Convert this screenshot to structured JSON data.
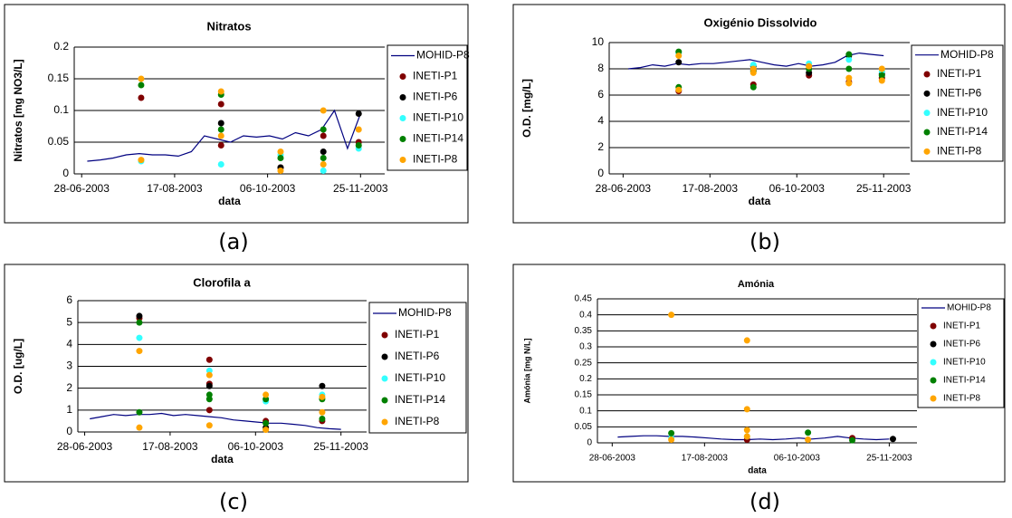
{
  "chart_data": [
    {
      "type": "mixed",
      "title": "Nitratos",
      "caption": "(a)",
      "x_label": "data",
      "y_label": "Nitratos [mg NO3/L]",
      "grid": true,
      "legend": "right",
      "xlim": [
        "2003-06-24",
        "2003-12-08"
      ],
      "xticks": [
        {
          "value": "2003-06-28",
          "label": "28-06-2003"
        },
        {
          "value": "2003-08-17",
          "label": "17-08-2003"
        },
        {
          "value": "2003-10-06",
          "label": "06-10-2003"
        },
        {
          "value": "2003-11-25",
          "label": "25-11-2003"
        }
      ],
      "ylim": [
        0,
        0.2
      ],
      "yticks": [
        0,
        0.05,
        0.1,
        0.15,
        0.2
      ],
      "series": [
        {
          "name": "MOHID-P8",
          "type": "line",
          "color": "#000080",
          "x": [
            "2003-07-01",
            "2003-07-08",
            "2003-07-15",
            "2003-07-22",
            "2003-07-29",
            "2003-08-05",
            "2003-08-12",
            "2003-08-19",
            "2003-08-26",
            "2003-09-02",
            "2003-09-09",
            "2003-09-16",
            "2003-09-23",
            "2003-09-30",
            "2003-10-07",
            "2003-10-14",
            "2003-10-21",
            "2003-10-28",
            "2003-11-04",
            "2003-11-11",
            "2003-11-18",
            "2003-11-25"
          ],
          "values": [
            0.02,
            0.022,
            0.025,
            0.03,
            0.032,
            0.03,
            0.03,
            0.028,
            0.035,
            0.06,
            0.055,
            0.05,
            0.06,
            0.058,
            0.06,
            0.055,
            0.065,
            0.06,
            0.07,
            0.1,
            0.04,
            0.095
          ]
        },
        {
          "name": "INETI-P1",
          "type": "scatter",
          "color": "#800000",
          "x": [
            "2003-07-30",
            "2003-09-11",
            "2003-09-11",
            "2003-10-13",
            "2003-11-05",
            "2003-11-24"
          ],
          "values": [
            0.12,
            0.11,
            0.045,
            0.01,
            0.06,
            0.05
          ]
        },
        {
          "name": "INETI-P6",
          "type": "scatter",
          "color": "#000000",
          "x": [
            "2003-09-11",
            "2003-10-13",
            "2003-11-05",
            "2003-11-24"
          ],
          "values": [
            0.08,
            0.01,
            0.035,
            0.095
          ]
        },
        {
          "name": "INETI-P10",
          "type": "scatter",
          "color": "#33ffff",
          "x": [
            "2003-07-30",
            "2003-09-11",
            "2003-10-13",
            "2003-11-05",
            "2003-11-24"
          ],
          "values": [
            0.02,
            0.015,
            0.03,
            0.005,
            0.04
          ]
        },
        {
          "name": "INETI-P14",
          "type": "scatter",
          "color": "#008000",
          "x": [
            "2003-07-30",
            "2003-09-11",
            "2003-09-11",
            "2003-10-13",
            "2003-11-05",
            "2003-11-05",
            "2003-11-24"
          ],
          "values": [
            0.14,
            0.125,
            0.07,
            0.025,
            0.07,
            0.025,
            0.045
          ]
        },
        {
          "name": "INETI-P8",
          "type": "scatter",
          "color": "#ffa500",
          "x": [
            "2003-07-30",
            "2003-07-30",
            "2003-09-11",
            "2003-09-11",
            "2003-10-13",
            "2003-10-13",
            "2003-11-05",
            "2003-11-05",
            "2003-11-24"
          ],
          "values": [
            0.15,
            0.022,
            0.13,
            0.06,
            0.035,
            0.005,
            0.1,
            0.015,
            0.07
          ]
        }
      ]
    },
    {
      "type": "mixed",
      "title": "Oxigénio Dissolvido",
      "caption": "(b)",
      "x_label": "data",
      "y_label": "O.D. [mg/L]",
      "grid": true,
      "legend": "right",
      "xlim": [
        "2003-06-20",
        "2003-12-10"
      ],
      "xticks": [
        {
          "value": "2003-06-28",
          "label": "28-06-2003"
        },
        {
          "value": "2003-08-17",
          "label": "17-08-2003"
        },
        {
          "value": "2003-10-06",
          "label": "06-10-2003"
        },
        {
          "value": "2003-11-25",
          "label": "25-11-2003"
        }
      ],
      "ylim": [
        0,
        10
      ],
      "yticks": [
        0,
        2,
        4,
        6,
        8,
        10
      ],
      "series": [
        {
          "name": "MOHID-P8",
          "type": "line",
          "color": "#000080",
          "x": [
            "2003-07-01",
            "2003-07-08",
            "2003-07-15",
            "2003-07-22",
            "2003-07-29",
            "2003-08-05",
            "2003-08-12",
            "2003-08-19",
            "2003-08-26",
            "2003-09-02",
            "2003-09-09",
            "2003-09-16",
            "2003-09-23",
            "2003-09-30",
            "2003-10-07",
            "2003-10-14",
            "2003-10-21",
            "2003-10-28",
            "2003-11-04",
            "2003-11-11",
            "2003-11-18",
            "2003-11-25"
          ],
          "values": [
            8,
            8.1,
            8.3,
            8.2,
            8.4,
            8.3,
            8.4,
            8.4,
            8.5,
            8.6,
            8.7,
            8.5,
            8.3,
            8.2,
            8.4,
            8.2,
            8.3,
            8.5,
            9,
            9.2,
            9.1,
            9
          ]
        },
        {
          "name": "INETI-P1",
          "type": "scatter",
          "color": "#800000",
          "x": [
            "2003-07-30",
            "2003-09-11",
            "2003-09-11",
            "2003-10-13",
            "2003-11-05",
            "2003-11-24"
          ],
          "values": [
            6.3,
            6.8,
            7.9,
            7.5,
            7,
            7.3
          ]
        },
        {
          "name": "INETI-P6",
          "type": "scatter",
          "color": "#000000",
          "x": [
            "2003-07-30",
            "2003-09-11",
            "2003-10-13",
            "2003-11-05",
            "2003-11-24"
          ],
          "values": [
            8.5,
            8.2,
            7.7,
            9,
            7.6
          ]
        },
        {
          "name": "INETI-P10",
          "type": "scatter",
          "color": "#33ffff",
          "x": [
            "2003-07-30",
            "2003-09-11",
            "2003-10-13",
            "2003-11-05",
            "2003-11-24"
          ],
          "values": [
            9.2,
            8.3,
            8.4,
            8.7,
            7.8
          ]
        },
        {
          "name": "INETI-P14",
          "type": "scatter",
          "color": "#008000",
          "x": [
            "2003-07-30",
            "2003-07-30",
            "2003-09-11",
            "2003-09-11",
            "2003-10-13",
            "2003-11-05",
            "2003-11-05",
            "2003-11-24"
          ],
          "values": [
            9.3,
            6.6,
            6.6,
            7.8,
            8,
            9.1,
            8,
            7.5
          ]
        },
        {
          "name": "INETI-P8",
          "type": "scatter",
          "color": "#ffa500",
          "x": [
            "2003-07-30",
            "2003-07-30",
            "2003-09-11",
            "2003-09-11",
            "2003-10-13",
            "2003-11-05",
            "2003-11-05",
            "2003-11-24",
            "2003-11-24"
          ],
          "values": [
            9,
            6.4,
            8,
            7.7,
            8.2,
            6.9,
            7.3,
            7.1,
            8
          ]
        }
      ]
    },
    {
      "type": "mixed",
      "title": "Clorofila a",
      "caption": "(c)",
      "x_label": "data",
      "y_label": "O.D. [ug/L]",
      "grid": true,
      "legend": "right",
      "xlim": [
        "2003-06-24",
        "2003-12-10"
      ],
      "xticks": [
        {
          "value": "2003-06-28",
          "label": "28-06-2003"
        },
        {
          "value": "2003-08-17",
          "label": "17-08-2003"
        },
        {
          "value": "2003-10-06",
          "label": "06-10-2003"
        },
        {
          "value": "2003-11-25",
          "label": "25-11-2003"
        }
      ],
      "ylim": [
        0,
        6
      ],
      "yticks": [
        0,
        1,
        2,
        3,
        4,
        5,
        6
      ],
      "series": [
        {
          "name": "MOHID-P8",
          "type": "line",
          "color": "#000080",
          "x": [
            "2003-07-01",
            "2003-07-08",
            "2003-07-15",
            "2003-07-22",
            "2003-07-29",
            "2003-08-05",
            "2003-08-12",
            "2003-08-19",
            "2003-08-26",
            "2003-09-02",
            "2003-09-09",
            "2003-09-16",
            "2003-09-23",
            "2003-09-30",
            "2003-10-07",
            "2003-10-14",
            "2003-10-21",
            "2003-10-28",
            "2003-11-04",
            "2003-11-11",
            "2003-11-18",
            "2003-11-25"
          ],
          "values": [
            0.6,
            0.7,
            0.8,
            0.75,
            0.8,
            0.8,
            0.85,
            0.75,
            0.8,
            0.75,
            0.7,
            0.65,
            0.55,
            0.5,
            0.45,
            0.4,
            0.4,
            0.35,
            0.3,
            0.2,
            0.15,
            0.12
          ]
        },
        {
          "name": "INETI-P1",
          "type": "scatter",
          "color": "#800000",
          "x": [
            "2003-07-30",
            "2003-09-09",
            "2003-09-09",
            "2003-09-09",
            "2003-10-12",
            "2003-11-14"
          ],
          "values": [
            5.2,
            3.3,
            2.2,
            1,
            0.5,
            0.5
          ]
        },
        {
          "name": "INETI-P6",
          "type": "scatter",
          "color": "#000000",
          "x": [
            "2003-07-30",
            "2003-09-09",
            "2003-10-12",
            "2003-11-14"
          ],
          "values": [
            5.3,
            2.1,
            0.2,
            2.1
          ]
        },
        {
          "name": "INETI-P10",
          "type": "scatter",
          "color": "#33ffff",
          "x": [
            "2003-07-30",
            "2003-09-09",
            "2003-10-12",
            "2003-11-14"
          ],
          "values": [
            4.3,
            2.8,
            1.4,
            1.7
          ]
        },
        {
          "name": "INETI-P14",
          "type": "scatter",
          "color": "#008000",
          "x": [
            "2003-07-30",
            "2003-07-30",
            "2003-09-09",
            "2003-09-09",
            "2003-10-12",
            "2003-10-12",
            "2003-11-14",
            "2003-11-14"
          ],
          "values": [
            5,
            0.9,
            1.7,
            1.5,
            1.5,
            0.4,
            1.5,
            0.6
          ]
        },
        {
          "name": "INETI-P8",
          "type": "scatter",
          "color": "#ffa500",
          "x": [
            "2003-07-30",
            "2003-07-30",
            "2003-09-09",
            "2003-09-09",
            "2003-10-12",
            "2003-10-12",
            "2003-11-14",
            "2003-11-14"
          ],
          "values": [
            3.7,
            0.2,
            2.6,
            0.3,
            1.7,
            0.1,
            1.6,
            0.9
          ]
        }
      ]
    },
    {
      "type": "mixed",
      "title": "Amónia",
      "caption": "(d)",
      "x_label": "data",
      "y_label": "Amónia [mg N/L]",
      "grid": true,
      "legend": "right",
      "xlim": [
        "2003-06-20",
        "2003-12-10"
      ],
      "xticks": [
        {
          "value": "2003-06-28",
          "label": "28-06-2003"
        },
        {
          "value": "2003-08-17",
          "label": "17-08-2003"
        },
        {
          "value": "2003-10-06",
          "label": "06-10-2003"
        },
        {
          "value": "2003-11-25",
          "label": "25-11-2003"
        }
      ],
      "ylim": [
        0,
        0.45
      ],
      "yticks": [
        0,
        0.05,
        0.1,
        0.15,
        0.2,
        0.25,
        0.3,
        0.35,
        0.4,
        0.45
      ],
      "series": [
        {
          "name": "MOHID-P8",
          "type": "line",
          "color": "#000080",
          "x": [
            "2003-07-01",
            "2003-07-08",
            "2003-07-15",
            "2003-07-22",
            "2003-07-29",
            "2003-08-05",
            "2003-08-12",
            "2003-08-19",
            "2003-08-26",
            "2003-09-02",
            "2003-09-09",
            "2003-09-16",
            "2003-09-23",
            "2003-09-30",
            "2003-10-07",
            "2003-10-14",
            "2003-10-21",
            "2003-10-28",
            "2003-11-04",
            "2003-11-11",
            "2003-11-18",
            "2003-11-25"
          ],
          "values": [
            0.018,
            0.02,
            0.022,
            0.022,
            0.02,
            0.02,
            0.018,
            0.015,
            0.012,
            0.01,
            0.01,
            0.012,
            0.01,
            0.012,
            0.015,
            0.012,
            0.015,
            0.02,
            0.015,
            0.012,
            0.01,
            0.012
          ]
        },
        {
          "name": "INETI-P1",
          "type": "scatter",
          "color": "#800000",
          "x": [
            "2003-09-09",
            "2003-11-05"
          ],
          "values": [
            0.01,
            0.015
          ]
        },
        {
          "name": "INETI-P6",
          "type": "scatter",
          "color": "#000000",
          "x": [
            "2003-11-27"
          ],
          "values": [
            0.012
          ]
        },
        {
          "name": "INETI-P10",
          "type": "scatter",
          "color": "#33ffff",
          "x": [
            "2003-07-30",
            "2003-09-09"
          ],
          "values": [
            0.015,
            0.02
          ]
        },
        {
          "name": "INETI-P14",
          "type": "scatter",
          "color": "#008000",
          "x": [
            "2003-07-30",
            "2003-10-12",
            "2003-11-05"
          ],
          "values": [
            0.03,
            0.032,
            0.008
          ]
        },
        {
          "name": "INETI-P8",
          "type": "scatter",
          "color": "#ffa500",
          "x": [
            "2003-07-30",
            "2003-07-30",
            "2003-09-09",
            "2003-09-09",
            "2003-09-09",
            "2003-09-09",
            "2003-10-12"
          ],
          "values": [
            0.4,
            0.01,
            0.32,
            0.105,
            0.04,
            0.02,
            0.01
          ]
        }
      ]
    }
  ]
}
